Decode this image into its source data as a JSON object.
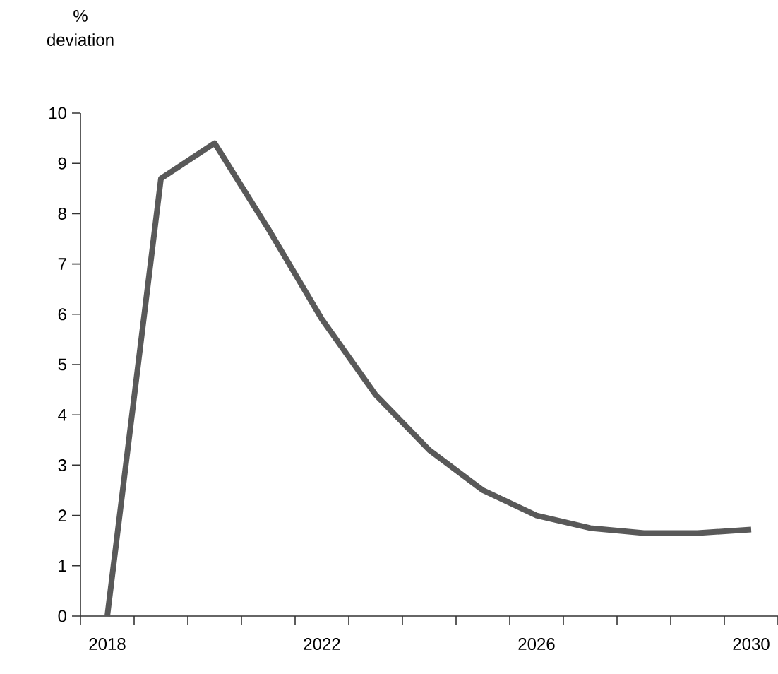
{
  "chart_data": {
    "type": "line",
    "ylabel": "% deviation",
    "x": [
      2018,
      2019,
      2020,
      2021,
      2022,
      2023,
      2024,
      2025,
      2026,
      2027,
      2028,
      2029,
      2030
    ],
    "series": [
      {
        "color": "#595959",
        "values": [
          0,
          8.7,
          9.4,
          7.7,
          5.9,
          4.4,
          3.3,
          2.5,
          2.0,
          1.75,
          1.65,
          1.65,
          1.72
        ]
      }
    ],
    "xlim": [
      2017.5,
      2030.5
    ],
    "xticks": [
      2018,
      2022,
      2026,
      2030,
      {
        "value": 2017.5,
        "label": null
      },
      {
        "value": 2018.5,
        "label": null
      },
      {
        "value": 2019.5,
        "label": null
      },
      {
        "value": 2020.5,
        "label": null
      },
      {
        "value": 2021.5,
        "label": null
      },
      {
        "value": 2022.5,
        "label": null
      },
      {
        "value": 2023.5,
        "label": null
      },
      {
        "value": 2024.5,
        "label": null
      },
      {
        "value": 2025.5,
        "label": null
      },
      {
        "value": 2026.5,
        "label": null
      },
      {
        "value": 2027.5,
        "label": null
      },
      {
        "value": 2028.5,
        "label": null
      },
      {
        "value": 2029.5,
        "label": null
      },
      {
        "value": 2030.5,
        "label": null
      }
    ],
    "ylim": [
      0,
      10
    ],
    "yticks": [
      0,
      1,
      2,
      3,
      4,
      5,
      6,
      7,
      8,
      9,
      10
    ],
    "grid": false,
    "marker": "none",
    "line_style": "solid"
  }
}
